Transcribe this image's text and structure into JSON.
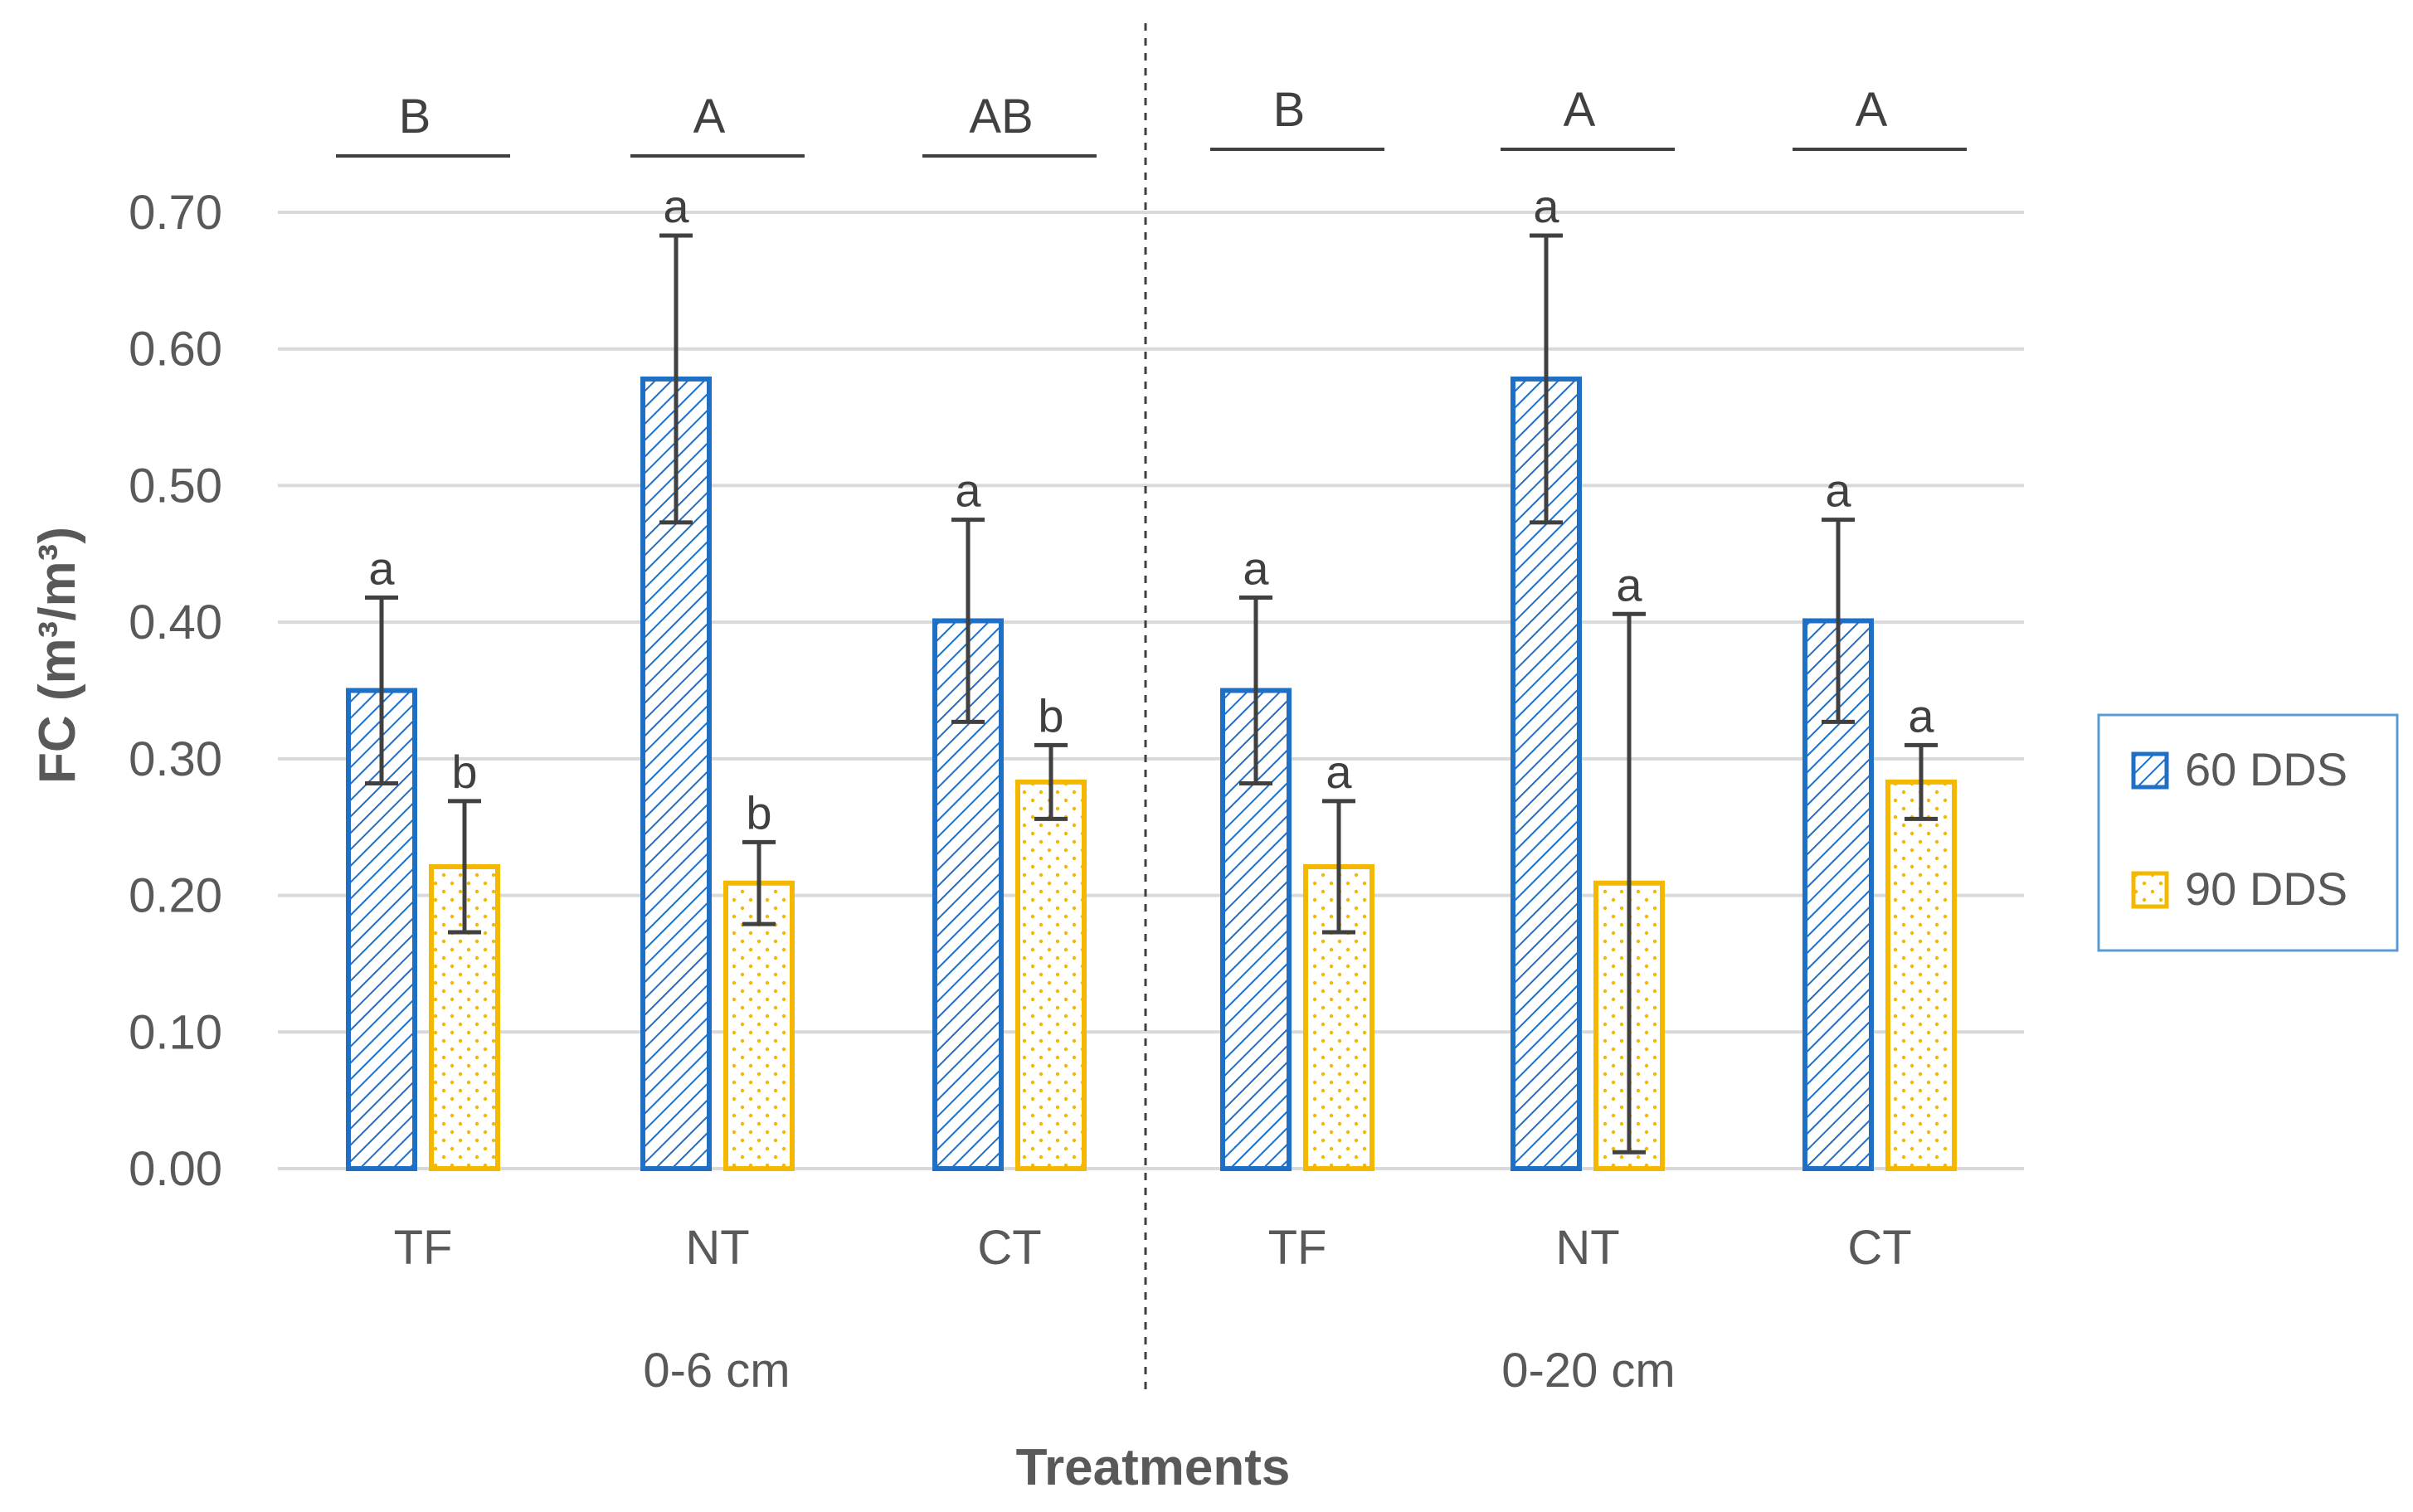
{
  "chart_data": {
    "type": "bar",
    "title": "",
    "xlabel": "Treatments",
    "ylabel": "FC (m³/m³)",
    "ylim": [
      0,
      0.7
    ],
    "yticks": [
      "0.00",
      "0.10",
      "0.20",
      "0.30",
      "0.40",
      "0.50",
      "0.60",
      "0.70"
    ],
    "grid": true,
    "legend_position": "right",
    "groups": [
      {
        "label": "0-6 cm",
        "categories": [
          "TF",
          "NT",
          "CT"
        ],
        "group_letters": [
          "B",
          "A",
          "AB"
        ],
        "series": [
          {
            "name": "60 DDS",
            "values": [
              0.35,
              0.578,
              0.401
            ],
            "errors": [
              0.068,
              0.105,
              0.074
            ],
            "letters": [
              "a",
              "a",
              "a"
            ]
          },
          {
            "name": "90 DDS",
            "values": [
              0.221,
              0.209,
              0.283
            ],
            "errors": [
              0.048,
              0.03,
              0.027
            ],
            "letters": [
              "b",
              "b",
              "b"
            ]
          }
        ]
      },
      {
        "label": "0-20 cm",
        "categories": [
          "TF",
          "NT",
          "CT"
        ],
        "group_letters": [
          "B",
          "A",
          "A"
        ],
        "series": [
          {
            "name": "60 DDS",
            "values": [
              0.35,
              0.578,
              0.401
            ],
            "errors": [
              0.068,
              0.105,
              0.074
            ],
            "letters": [
              "a",
              "a",
              "a"
            ]
          },
          {
            "name": "90 DDS",
            "values": [
              0.221,
              0.209,
              0.283
            ],
            "errors": [
              0.048,
              0.197,
              0.027
            ],
            "letters": [
              "a",
              "a",
              "a"
            ]
          }
        ]
      }
    ],
    "legend": [
      {
        "name": "60 DDS",
        "color": "#1f6fc5",
        "pattern": "diagonal-hatch"
      },
      {
        "name": "90 DDS",
        "color": "#f5b800",
        "pattern": "dots"
      }
    ]
  },
  "colors": {
    "series_60": "#1f6fc5",
    "series_90": "#f5b800",
    "grid": "#d9d9d9",
    "axis_text": "#595959",
    "error_bar": "#404040",
    "legend_border": "#5b9bd5"
  }
}
